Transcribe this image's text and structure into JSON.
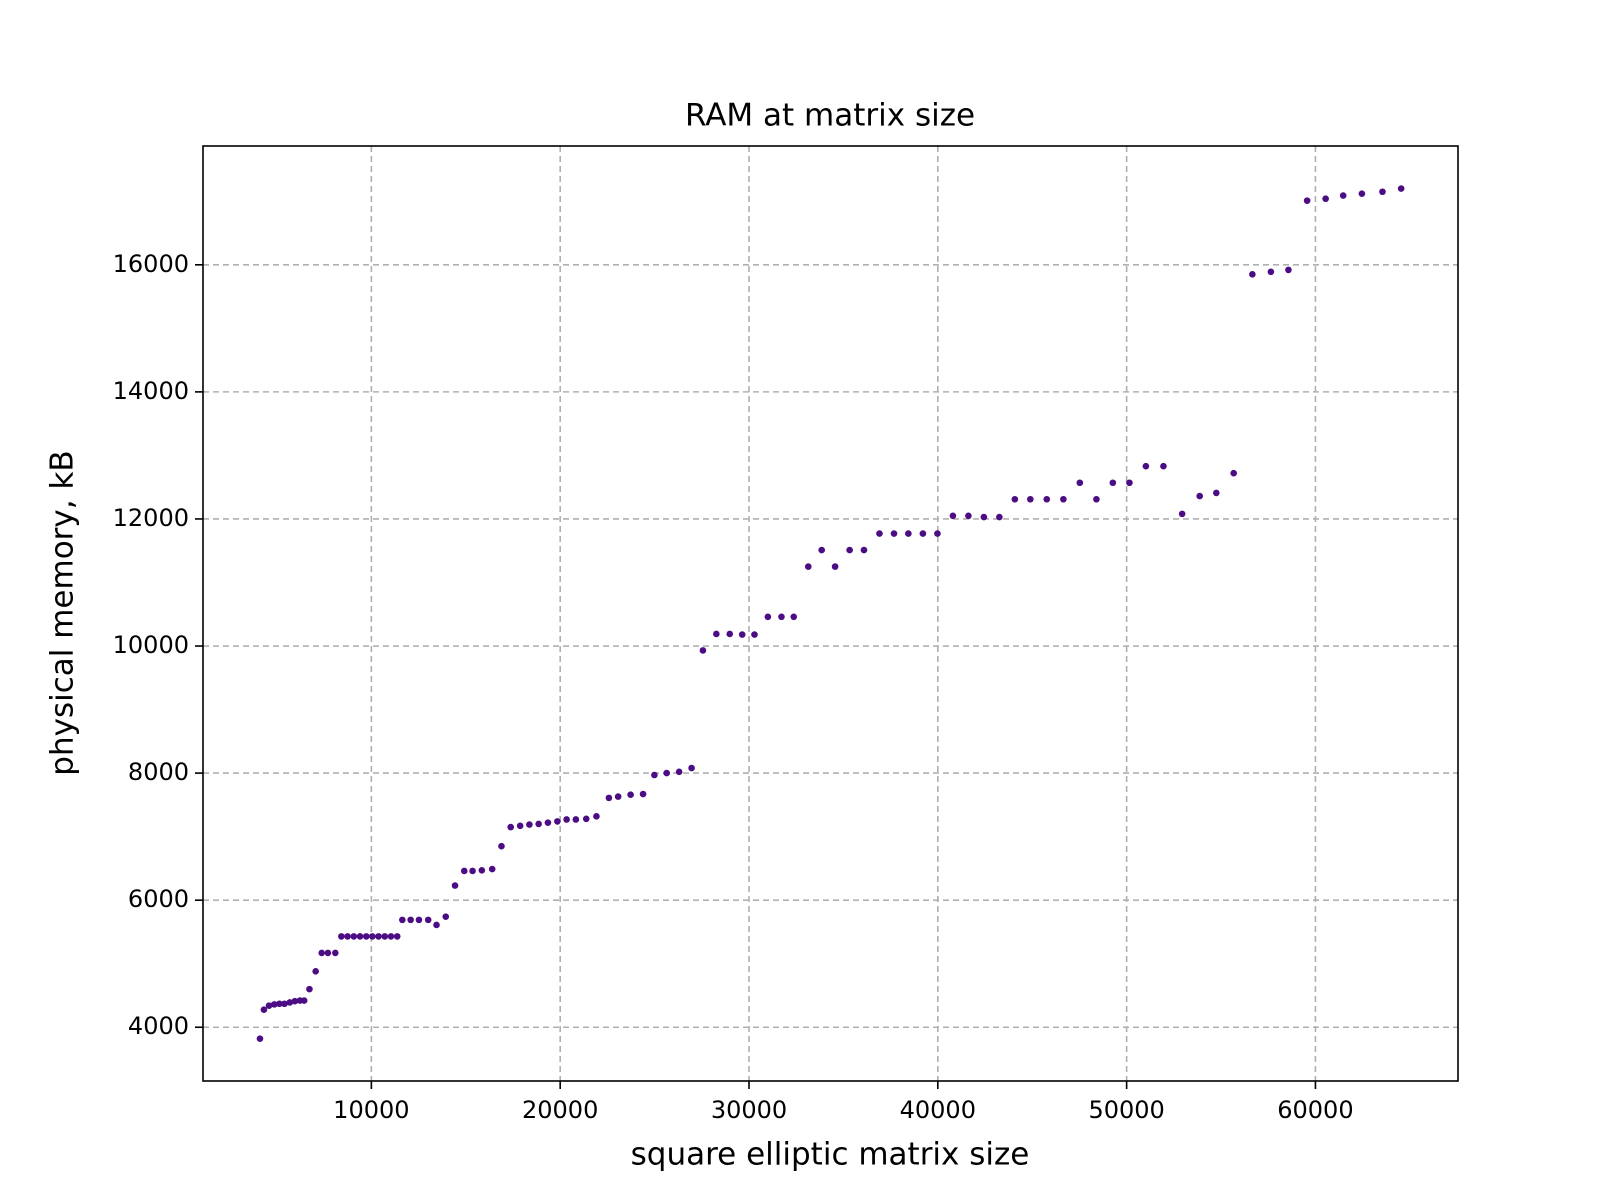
{
  "chart_data": {
    "type": "scatter",
    "title": "RAM at matrix size",
    "x_label": "square elliptic matrix size",
    "y_label": "physical memory, kB",
    "x": [
      4100,
      4310,
      4580,
      4860,
      5130,
      5400,
      5680,
      5950,
      6220,
      6440,
      6720,
      7050,
      7370,
      7700,
      8090,
      8410,
      8740,
      9070,
      9400,
      9730,
      10050,
      10380,
      10710,
      11040,
      11370,
      11640,
      12080,
      12520,
      13010,
      13450,
      13940,
      14430,
      14920,
      15360,
      15850,
      16400,
      16890,
      17380,
      17880,
      18370,
      18860,
      19350,
      19850,
      20340,
      20830,
      21380,
      21920,
      22580,
      23070,
      23730,
      24390,
      24990,
      25640,
      26300,
      26960,
      27560,
      28270,
      28980,
      29640,
      30290,
      31000,
      31720,
      32370,
      33140,
      33850,
      34560,
      35330,
      36090,
      36910,
      37680,
      38440,
      39210,
      39980,
      40800,
      41620,
      42440,
      43260,
      44080,
      44900,
      45770,
      46650,
      47520,
      48400,
      49270,
      50150,
      51020,
      51950,
      52940,
      53870,
      54750,
      55670,
      56660,
      57640,
      58570,
      59560,
      60540,
      61470,
      62460,
      63550,
      64540
    ],
    "values": [
      3820,
      4276,
      4340,
      4360,
      4370,
      4370,
      4390,
      4410,
      4420,
      4420,
      4600,
      4880,
      5170,
      5170,
      5170,
      5430,
      5430,
      5430,
      5430,
      5430,
      5430,
      5430,
      5430,
      5430,
      5430,
      5690,
      5690,
      5690,
      5690,
      5610,
      5740,
      6230,
      6460,
      6460,
      6470,
      6490,
      6850,
      7150,
      7170,
      7190,
      7200,
      7220,
      7240,
      7270,
      7270,
      7280,
      7320,
      7610,
      7630,
      7660,
      7670,
      7970,
      8000,
      8020,
      8080,
      9930,
      10190,
      10190,
      10180,
      10180,
      10460,
      10460,
      10460,
      11250,
      11510,
      11250,
      11510,
      11510,
      11770,
      11770,
      11770,
      11770,
      11770,
      12050,
      12050,
      12030,
      12030,
      12310,
      12310,
      12310,
      12310,
      12570,
      12310,
      12570,
      12570,
      12830,
      12830,
      12080,
      12360,
      12410,
      12720,
      15850,
      15890,
      15920,
      17010,
      17040,
      17090,
      17120,
      17150,
      17200
    ],
    "color": "#4b0c84",
    "xlim": [
      1083,
      67550
    ],
    "ylim": [
      3154,
      17870
    ],
    "xticks": [
      10000,
      20000,
      30000,
      40000,
      50000,
      60000
    ],
    "yticks": [
      4000,
      6000,
      8000,
      10000,
      12000,
      14000,
      16000
    ],
    "grid": true
  }
}
